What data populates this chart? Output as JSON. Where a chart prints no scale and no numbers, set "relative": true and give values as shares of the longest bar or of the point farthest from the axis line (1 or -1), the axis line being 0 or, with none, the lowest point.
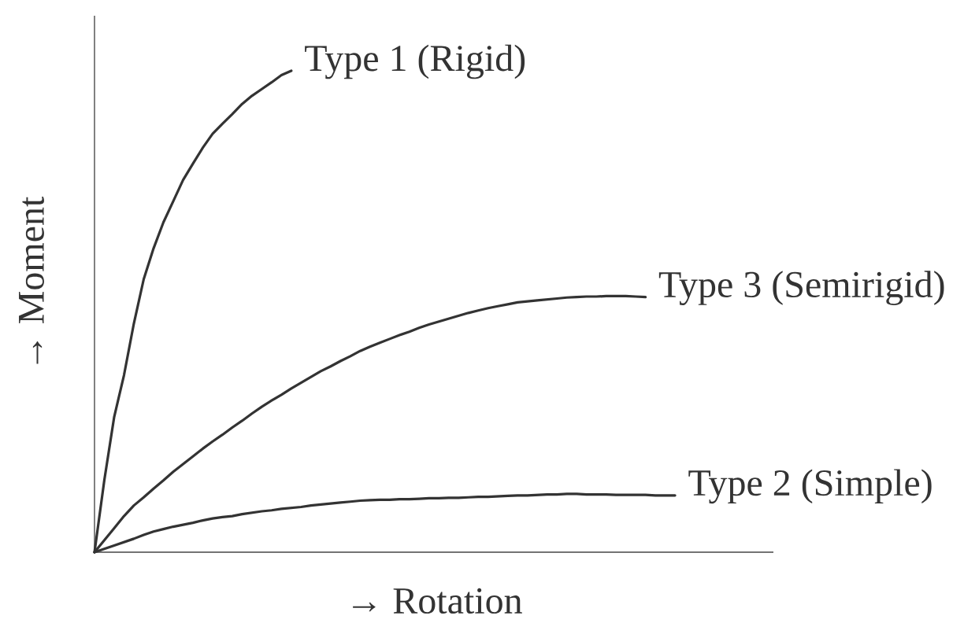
{
  "chart_data": {
    "type": "line",
    "xlabel": "→ Rotation",
    "ylabel": "→ Moment",
    "relative": true,
    "line_style": "solid",
    "categories": [
      null,
      null,
      null,
      null,
      null,
      null,
      null,
      null,
      null,
      null,
      null,
      null,
      null,
      null,
      null,
      null,
      null,
      null,
      null,
      null,
      null,
      null,
      null,
      null,
      null,
      null,
      null,
      null,
      null,
      null,
      null,
      null,
      null,
      null,
      null,
      null,
      null,
      null,
      null,
      null,
      null,
      null,
      null,
      null,
      null,
      null,
      null,
      null,
      null,
      null,
      null,
      null,
      null,
      null,
      null,
      null,
      null,
      null,
      null,
      null,
      null,
      null,
      null,
      null,
      null,
      null,
      null,
      null,
      null,
      null
    ],
    "series": [
      {
        "name": "Type 1 (Rigid)",
        "color": "#333333",
        "values": [
          0,
          0.15,
          0.281,
          0.368,
          0.475,
          0.567,
          0.631,
          0.685,
          0.729,
          0.773,
          0.807,
          0.84,
          0.869,
          0.89,
          0.91,
          0.931,
          0.948,
          0.962,
          0.976,
          0.991,
          1,
          null,
          null,
          null,
          null,
          null,
          null,
          null,
          null,
          null,
          null,
          null,
          null,
          null,
          null,
          null,
          null,
          null,
          null,
          null,
          null,
          null,
          null,
          null,
          null,
          null,
          null,
          null,
          null,
          null,
          null,
          null,
          null,
          null,
          null,
          null,
          null,
          null,
          null,
          null,
          null,
          null,
          null,
          null,
          null,
          null,
          null,
          null,
          null,
          null
        ]
      },
      {
        "name": "Type 3 (Semirigid)",
        "color": "#333333",
        "values": [
          0,
          0.025,
          0.05,
          0.075,
          0.097,
          0.114,
          0.132,
          0.149,
          0.167,
          0.183,
          0.199,
          0.215,
          0.23,
          0.244,
          0.259,
          0.273,
          0.288,
          0.302,
          0.315,
          0.327,
          0.34,
          0.352,
          0.364,
          0.376,
          0.386,
          0.397,
          0.407,
          0.418,
          0.427,
          0.435,
          0.443,
          0.451,
          0.458,
          0.466,
          0.473,
          0.479,
          0.485,
          0.491,
          0.497,
          0.502,
          0.507,
          0.511,
          0.515,
          0.519,
          0.521,
          0.523,
          0.525,
          0.527,
          0.529,
          0.53,
          0.531,
          0.531,
          0.532,
          0.532,
          0.532,
          0.531,
          0.53,
          null,
          null,
          null,
          null,
          null,
          null,
          null,
          null,
          null,
          null,
          null,
          null,
          null
        ]
      },
      {
        "name": "Type 2 (Simple)",
        "color": "#333333",
        "values": [
          0,
          0.007,
          0.014,
          0.021,
          0.028,
          0.036,
          0.043,
          0.048,
          0.053,
          0.057,
          0.061,
          0.066,
          0.07,
          0.073,
          0.075,
          0.079,
          0.082,
          0.085,
          0.087,
          0.09,
          0.092,
          0.094,
          0.097,
          0.099,
          0.101,
          0.103,
          0.105,
          0.107,
          0.108,
          0.109,
          0.109,
          0.11,
          0.11,
          0.111,
          0.112,
          0.112,
          0.113,
          0.113,
          0.114,
          0.115,
          0.115,
          0.116,
          0.117,
          0.118,
          0.118,
          0.119,
          0.12,
          0.12,
          0.121,
          0.121,
          0.12,
          0.12,
          0.12,
          0.119,
          0.119,
          0.119,
          0.119,
          0.118,
          0.118,
          0.118,
          null,
          null,
          null,
          null,
          null,
          null,
          null,
          null,
          null,
          null
        ]
      }
    ]
  }
}
